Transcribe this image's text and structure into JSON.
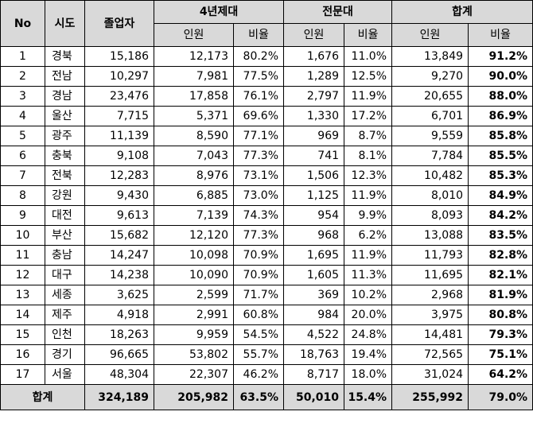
{
  "headers": {
    "no": "No",
    "region": "시도",
    "graduates": "졸업자",
    "univ4": "4년제대",
    "college": "전문대",
    "total": "합계",
    "people": "인원",
    "ratio": "비율"
  },
  "rows": [
    {
      "no": "1",
      "region": "경북",
      "grad": "15,186",
      "u_n": "12,173",
      "u_r": "80.2%",
      "c_n": "1,676",
      "c_r": "11.0%",
      "t_n": "13,849",
      "t_r": "91.2%"
    },
    {
      "no": "2",
      "region": "전남",
      "grad": "10,297",
      "u_n": "7,981",
      "u_r": "77.5%",
      "c_n": "1,289",
      "c_r": "12.5%",
      "t_n": "9,270",
      "t_r": "90.0%"
    },
    {
      "no": "3",
      "region": "경남",
      "grad": "23,476",
      "u_n": "17,858",
      "u_r": "76.1%",
      "c_n": "2,797",
      "c_r": "11.9%",
      "t_n": "20,655",
      "t_r": "88.0%"
    },
    {
      "no": "4",
      "region": "울산",
      "grad": "7,715",
      "u_n": "5,371",
      "u_r": "69.6%",
      "c_n": "1,330",
      "c_r": "17.2%",
      "t_n": "6,701",
      "t_r": "86.9%"
    },
    {
      "no": "5",
      "region": "광주",
      "grad": "11,139",
      "u_n": "8,590",
      "u_r": "77.1%",
      "c_n": "969",
      "c_r": "8.7%",
      "t_n": "9,559",
      "t_r": "85.8%"
    },
    {
      "no": "6",
      "region": "충북",
      "grad": "9,108",
      "u_n": "7,043",
      "u_r": "77.3%",
      "c_n": "741",
      "c_r": "8.1%",
      "t_n": "7,784",
      "t_r": "85.5%"
    },
    {
      "no": "7",
      "region": "전북",
      "grad": "12,283",
      "u_n": "8,976",
      "u_r": "73.1%",
      "c_n": "1,506",
      "c_r": "12.3%",
      "t_n": "10,482",
      "t_r": "85.3%"
    },
    {
      "no": "8",
      "region": "강원",
      "grad": "9,430",
      "u_n": "6,885",
      "u_r": "73.0%",
      "c_n": "1,125",
      "c_r": "11.9%",
      "t_n": "8,010",
      "t_r": "84.9%"
    },
    {
      "no": "9",
      "region": "대전",
      "grad": "9,613",
      "u_n": "7,139",
      "u_r": "74.3%",
      "c_n": "954",
      "c_r": "9.9%",
      "t_n": "8,093",
      "t_r": "84.2%"
    },
    {
      "no": "10",
      "region": "부산",
      "grad": "15,682",
      "u_n": "12,120",
      "u_r": "77.3%",
      "c_n": "968",
      "c_r": "6.2%",
      "t_n": "13,088",
      "t_r": "83.5%"
    },
    {
      "no": "11",
      "region": "충남",
      "grad": "14,247",
      "u_n": "10,098",
      "u_r": "70.9%",
      "c_n": "1,695",
      "c_r": "11.9%",
      "t_n": "11,793",
      "t_r": "82.8%"
    },
    {
      "no": "12",
      "region": "대구",
      "grad": "14,238",
      "u_n": "10,090",
      "u_r": "70.9%",
      "c_n": "1,605",
      "c_r": "11.3%",
      "t_n": "11,695",
      "t_r": "82.1%"
    },
    {
      "no": "13",
      "region": "세종",
      "grad": "3,625",
      "u_n": "2,599",
      "u_r": "71.7%",
      "c_n": "369",
      "c_r": "10.2%",
      "t_n": "2,968",
      "t_r": "81.9%"
    },
    {
      "no": "14",
      "region": "제주",
      "grad": "4,918",
      "u_n": "2,991",
      "u_r": "60.8%",
      "c_n": "984",
      "c_r": "20.0%",
      "t_n": "3,975",
      "t_r": "80.8%"
    },
    {
      "no": "15",
      "region": "인천",
      "grad": "18,263",
      "u_n": "9,959",
      "u_r": "54.5%",
      "c_n": "4,522",
      "c_r": "24.8%",
      "t_n": "14,481",
      "t_r": "79.3%"
    },
    {
      "no": "16",
      "region": "경기",
      "grad": "96,665",
      "u_n": "53,802",
      "u_r": "55.7%",
      "c_n": "18,763",
      "c_r": "19.4%",
      "t_n": "72,565",
      "t_r": "75.1%"
    },
    {
      "no": "17",
      "region": "서울",
      "grad": "48,304",
      "u_n": "22,307",
      "u_r": "46.2%",
      "c_n": "8,717",
      "c_r": "18.0%",
      "t_n": "31,024",
      "t_r": "64.2%"
    }
  ],
  "total": {
    "label": "합계",
    "grad": "324,189",
    "u_n": "205,982",
    "u_r": "63.5%",
    "c_n": "50,010",
    "c_r": "15.4%",
    "t_n": "255,992",
    "t_r": "79.0%"
  }
}
